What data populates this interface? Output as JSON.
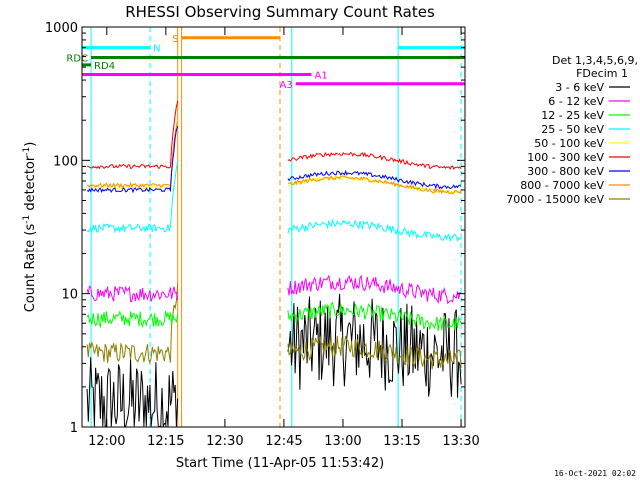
{
  "chart_data": {
    "type": "line",
    "title": "RHESSI Observing Summary Count Rates",
    "xlabel": "Start Time (11-Apr-05 11:53:42)",
    "ylabel_main": "Count Rate (s",
    "ylabel_sup1": "-1",
    "ylabel_mid": " detector",
    "ylabel_sup2": "-1",
    "ylabel_end": ")",
    "y_scale": "log",
    "ylim": [
      1,
      1000
    ],
    "xlim": [
      "11:53:42",
      "13:31:00"
    ],
    "y_ticks": [
      {
        "value": 1,
        "label": "1"
      },
      {
        "value": 10,
        "label": "10"
      },
      {
        "value": 100,
        "label": "100"
      },
      {
        "value": 1000,
        "label": "1000"
      }
    ],
    "x_ticks": [
      {
        "value": "12:00",
        "label": "12:00"
      },
      {
        "value": "12:15",
        "label": "12:15"
      },
      {
        "value": "12:30",
        "label": "12:30"
      },
      {
        "value": "12:45",
        "label": "12:45"
      },
      {
        "value": "13:00",
        "label": "13:00"
      },
      {
        "value": "13:15",
        "label": "13:15"
      },
      {
        "value": "13:30",
        "label": "13:30"
      }
    ],
    "legend_header": [
      "Det 1,3,4,5,6,9,",
      "FDecim 1"
    ],
    "series": [
      {
        "name": "3 - 6 keV",
        "color": "#000000",
        "seg1": 1.5,
        "seg2": 4,
        "noise": 0.35
      },
      {
        "name": "6 - 12 keV",
        "color": "#ff00ff",
        "seg1": 10,
        "seg2": 11,
        "noise": 0.06
      },
      {
        "name": "12 - 25 keV",
        "color": "#00ff00",
        "seg1": 6.5,
        "seg2": 6.7,
        "noise": 0.06
      },
      {
        "name": "25 - 50 keV",
        "color": "#00ffff",
        "seg1": 31,
        "seg2": 30,
        "noise": 0.03
      },
      {
        "name": "50 - 100 keV",
        "color": "#ffff00",
        "seg1": 63,
        "seg2": 66,
        "noise": 0.015
      },
      {
        "name": "100 - 300 keV",
        "color": "#ff0000",
        "seg1": 90,
        "seg2": 100,
        "noise": 0.015
      },
      {
        "name": "300 - 800 keV",
        "color": "#0000ff",
        "seg1": 60,
        "seg2": 72,
        "noise": 0.015
      },
      {
        "name": "800 - 7000 keV",
        "color": "#ff8c00",
        "seg1": 65,
        "seg2": 66,
        "noise": 0.015
      },
      {
        "name": "7000 - 15000 keV",
        "color": "#8b8000",
        "seg1": 3.6,
        "seg2": 3.6,
        "noise": 0.08
      }
    ],
    "segments": [
      {
        "start": "11:55:00",
        "end": "12:18:00"
      },
      {
        "start": "12:46:00",
        "end": "13:30:00"
      }
    ],
    "vertical_lines": [
      {
        "time": "11:56:00",
        "color": "#00ffff",
        "style": "solid"
      },
      {
        "time": "12:11:00",
        "color": "#00ffff",
        "style": "dashed"
      },
      {
        "time": "12:18:00",
        "color": "#ff8c00",
        "style": "solid"
      },
      {
        "time": "12:19:00",
        "color": "#ff8c00",
        "style": "solid"
      },
      {
        "time": "12:44:00",
        "color": "#ff8c00",
        "style": "dashed"
      },
      {
        "time": "12:47:00",
        "color": "#00ffff",
        "style": "solid"
      },
      {
        "time": "13:14:00",
        "color": "#00ffff",
        "style": "solid"
      },
      {
        "time": "13:30:00",
        "color": "#00ffff",
        "style": "dashed"
      }
    ],
    "flag_bars": [
      {
        "label": "N",
        "color": "#00ffff",
        "start": "11:53:42",
        "end": "12:11:00",
        "y": 700,
        "label_pos": "end"
      },
      {
        "label": "",
        "color": "#00ffff",
        "start": "13:14:00",
        "end": "13:31:00",
        "y": 700,
        "label_pos": "none"
      },
      {
        "label": "S",
        "color": "#ff8c00",
        "start": "12:19:00",
        "end": "12:44:00",
        "y": 830,
        "label_pos": "start"
      },
      {
        "label": "RDC",
        "color": "#008000",
        "start": "11:56:00",
        "end": "13:31:00",
        "y": 590,
        "label_pos": "start"
      },
      {
        "label": "RD4",
        "color": "#008000",
        "start": "11:53:42",
        "end": "11:56:00",
        "y": 520,
        "label_pos": "end"
      },
      {
        "label": "A1",
        "color": "#ff00ff",
        "start": "11:53:42",
        "end": "12:52:00",
        "y": 440,
        "label_pos": "end"
      },
      {
        "label": "A3",
        "color": "#ff00ff",
        "start": "12:48:00",
        "end": "13:31:00",
        "y": 375,
        "label_pos": "start"
      }
    ]
  },
  "footer": {
    "timestamp": "16-Oct-2021 02:02"
  }
}
